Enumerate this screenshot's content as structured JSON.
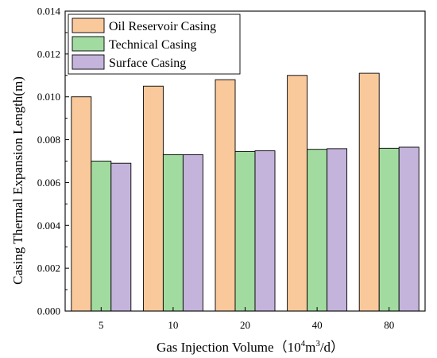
{
  "chart_data": {
    "type": "bar",
    "categories": [
      "5",
      "10",
      "20",
      "40",
      "80"
    ],
    "series": [
      {
        "name": "Oil Reservoir Casing",
        "color": "#f9c99b",
        "values": [
          0.01,
          0.0105,
          0.0108,
          0.011,
          0.0111
        ]
      },
      {
        "name": "Technical Casing",
        "color": "#a1dba0",
        "values": [
          0.007,
          0.0073,
          0.00745,
          0.00755,
          0.0076
        ]
      },
      {
        "name": "Surface Casing",
        "color": "#c4b4dc",
        "values": [
          0.0069,
          0.0073,
          0.00748,
          0.00758,
          0.00765
        ]
      }
    ],
    "xlabel": {
      "prefix": "Gas Injection Volume（10",
      "sup1": "4",
      "mid": "m",
      "sup2": "3",
      "suffix": "/d）"
    },
    "ylabel": "Casing Thermal Expansion Length(m)",
    "ylim": [
      0,
      0.014
    ],
    "yticks": [
      "0.000",
      "0.002",
      "0.004",
      "0.006",
      "0.008",
      "0.010",
      "0.012",
      "0.014"
    ],
    "legend_position": "top-left",
    "grid": false
  }
}
